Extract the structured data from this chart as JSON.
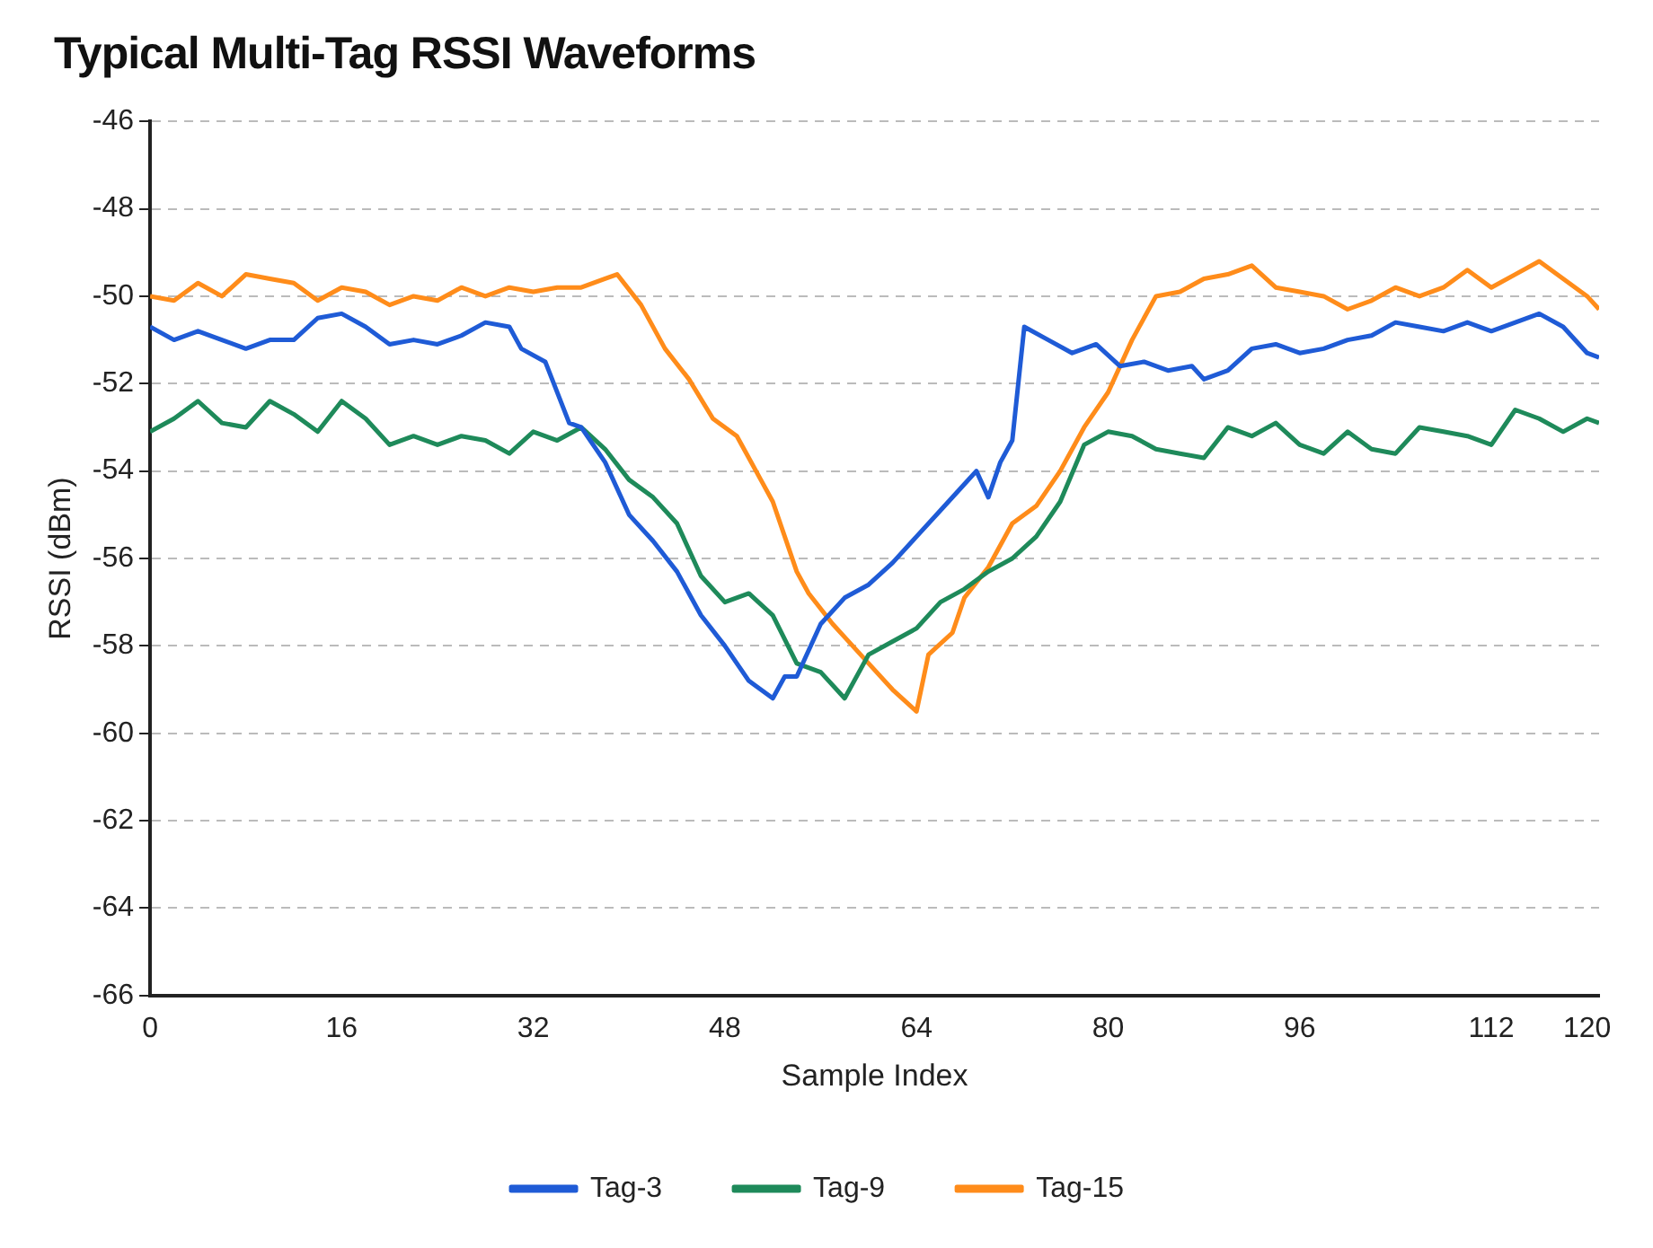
{
  "chart_data": {
    "type": "line",
    "title": "Typical Multi-Tag RSSI Waveforms",
    "xlabel": "Sample Index",
    "ylabel": "RSSI (dBm)",
    "xlim": [
      0,
      121
    ],
    "xticks": [
      0,
      16,
      32,
      48,
      64,
      80,
      96,
      112,
      120
    ],
    "ylim": [
      -66,
      -46
    ],
    "yticks": [
      -66,
      -64,
      -62,
      -60,
      -58,
      -56,
      -54,
      -52,
      -50,
      -48,
      -46
    ],
    "grid": "y",
    "legend": "bottom",
    "marker": "none",
    "line_style": "solid",
    "series": [
      {
        "name": "Tag-3",
        "color": "#1f5bd6",
        "x": [
          0,
          2,
          4,
          6,
          8,
          10,
          12,
          14,
          16,
          18,
          20,
          22,
          24,
          26,
          28,
          30,
          31,
          33,
          35,
          36,
          38,
          40,
          42,
          44,
          46,
          48,
          50,
          52,
          53,
          54,
          56,
          58,
          60,
          62,
          64,
          66,
          68,
          69,
          70,
          71,
          72,
          73,
          75,
          77,
          79,
          81,
          83,
          85,
          87,
          88,
          90,
          92,
          94,
          96,
          98,
          100,
          102,
          104,
          106,
          108,
          110,
          112,
          114,
          116,
          118,
          120,
          121
        ],
        "values": [
          -50.7,
          -51.0,
          -50.8,
          -51.0,
          -51.2,
          -51.0,
          -51.0,
          -50.5,
          -50.4,
          -50.7,
          -51.1,
          -51.0,
          -51.1,
          -50.9,
          -50.6,
          -50.7,
          -51.2,
          -51.5,
          -52.9,
          -53.0,
          -53.8,
          -55.0,
          -55.6,
          -56.3,
          -57.3,
          -58.0,
          -58.8,
          -59.2,
          -58.7,
          -58.7,
          -57.5,
          -56.9,
          -56.6,
          -56.1,
          -55.5,
          -54.9,
          -54.3,
          -54.0,
          -54.6,
          -53.8,
          -53.3,
          -50.7,
          -51.0,
          -51.3,
          -51.1,
          -51.6,
          -51.5,
          -51.7,
          -51.6,
          -51.9,
          -51.7,
          -51.2,
          -51.1,
          -51.3,
          -51.2,
          -51.0,
          -50.9,
          -50.6,
          -50.7,
          -50.8,
          -50.6,
          -50.8,
          -50.6,
          -50.4,
          -50.7,
          -51.3,
          -51.4
        ]
      },
      {
        "name": "Tag-9",
        "color": "#1e8a5a",
        "x": [
          0,
          2,
          4,
          6,
          8,
          10,
          12,
          14,
          16,
          18,
          20,
          22,
          24,
          26,
          28,
          30,
          32,
          34,
          36,
          38,
          40,
          42,
          44,
          46,
          48,
          50,
          52,
          54,
          56,
          58,
          60,
          62,
          64,
          66,
          68,
          70,
          72,
          74,
          76,
          78,
          80,
          82,
          84,
          86,
          88,
          90,
          92,
          94,
          96,
          98,
          100,
          102,
          104,
          106,
          108,
          110,
          112,
          114,
          116,
          118,
          120,
          121
        ],
        "values": [
          -53.1,
          -52.8,
          -52.4,
          -52.9,
          -53.0,
          -52.4,
          -52.7,
          -53.1,
          -52.4,
          -52.8,
          -53.4,
          -53.2,
          -53.4,
          -53.2,
          -53.3,
          -53.6,
          -53.1,
          -53.3,
          -53.0,
          -53.5,
          -54.2,
          -54.6,
          -55.2,
          -56.4,
          -57.0,
          -56.8,
          -57.3,
          -58.4,
          -58.6,
          -59.2,
          -58.2,
          -57.9,
          -57.6,
          -57.0,
          -56.7,
          -56.3,
          -56.0,
          -55.5,
          -54.7,
          -53.4,
          -53.1,
          -53.2,
          -53.5,
          -53.6,
          -53.7,
          -53.0,
          -53.2,
          -52.9,
          -53.4,
          -53.6,
          -53.1,
          -53.5,
          -53.6,
          -53.0,
          -53.1,
          -53.2,
          -53.4,
          -52.6,
          -52.8,
          -53.1,
          -52.8,
          -52.9
        ]
      },
      {
        "name": "Tag-15",
        "color": "#ff8c1a",
        "x": [
          0,
          2,
          4,
          6,
          8,
          10,
          12,
          14,
          16,
          18,
          20,
          22,
          24,
          26,
          28,
          30,
          32,
          34,
          36,
          38,
          39,
          41,
          43,
          45,
          47,
          49,
          51,
          52,
          54,
          55,
          57,
          58,
          60,
          62,
          64,
          65,
          67,
          68,
          70,
          72,
          74,
          76,
          78,
          80,
          82,
          84,
          86,
          88,
          90,
          92,
          94,
          96,
          98,
          100,
          102,
          104,
          106,
          108,
          110,
          112,
          114,
          116,
          118,
          120,
          121
        ],
        "values": [
          -50.0,
          -50.1,
          -49.7,
          -50.0,
          -49.5,
          -49.6,
          -49.7,
          -50.1,
          -49.8,
          -49.9,
          -50.2,
          -50.0,
          -50.1,
          -49.8,
          -50.0,
          -49.8,
          -49.9,
          -49.8,
          -49.8,
          -49.6,
          -49.5,
          -50.2,
          -51.2,
          -51.9,
          -52.8,
          -53.2,
          -54.2,
          -54.7,
          -56.3,
          -56.8,
          -57.5,
          -57.8,
          -58.4,
          -59.0,
          -59.5,
          -58.2,
          -57.7,
          -56.9,
          -56.2,
          -55.2,
          -54.8,
          -54.0,
          -53.0,
          -52.2,
          -51.0,
          -50.0,
          -49.9,
          -49.6,
          -49.5,
          -49.3,
          -49.8,
          -49.9,
          -50.0,
          -50.3,
          -50.1,
          -49.8,
          -50.0,
          -49.8,
          -49.4,
          -49.8,
          -49.5,
          -49.2,
          -49.6,
          -50.0,
          -50.3
        ]
      }
    ]
  }
}
